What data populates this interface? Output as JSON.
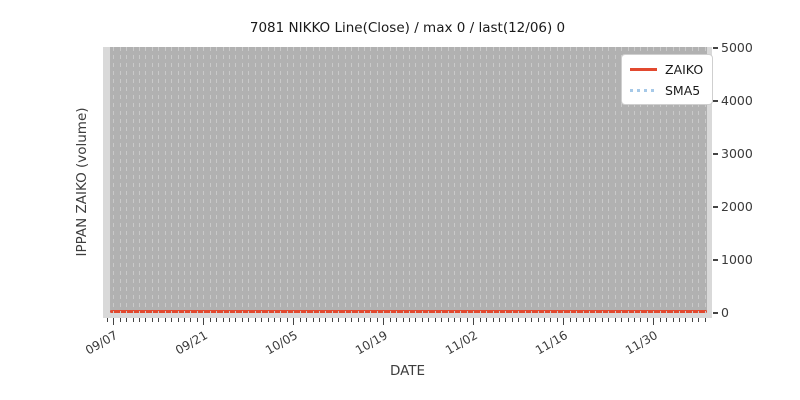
{
  "chart_data": {
    "type": "line",
    "title": "7081 NIKKO Line(Close) / max 0 / last(12/06) 0",
    "xlabel": "DATE",
    "ylabel": "IPPAN ZAIKO (volume)",
    "x_range": [
      "09/07",
      "12/06"
    ],
    "x_major_tick_labels": [
      "09/07",
      "09/21",
      "10/05",
      "10/19",
      "11/02",
      "11/16",
      "11/30"
    ],
    "x_minor_tick_interval": "1 day",
    "x_major_tick_interval": "14 days",
    "y_ticks": [
      0,
      1000,
      2000,
      3000,
      4000,
      5000
    ],
    "y_axis_side": "right",
    "ylim": [
      -100,
      5050
    ],
    "grid": "vertical dashed gridlines at every daily minor tick, drawn over data",
    "legend_position": "upper right",
    "series": [
      {
        "name": "ZAIKO",
        "color": "#e2492f",
        "line_style": "solid",
        "constant_value": 0
      },
      {
        "name": "SMA5",
        "color": "#a6c9e8",
        "line_style": "dotted",
        "constant_value": 0
      }
    ],
    "stats": {
      "max": 0,
      "last_date": "12/06",
      "last_value": 0
    }
  },
  "legend": {
    "items": [
      {
        "label": "ZAIKO",
        "color": "#e2492f",
        "style": "solid"
      },
      {
        "label": "SMA5",
        "color": "#a6c9e8",
        "style": "dotted"
      }
    ]
  },
  "colors": {
    "plot_background": "#d9d9d9",
    "data_span_background": "#b1b1b1",
    "gridline": "#c9c9c9",
    "zaiko_line": "#e2492f",
    "sma5_line": "#a6c9e8"
  }
}
